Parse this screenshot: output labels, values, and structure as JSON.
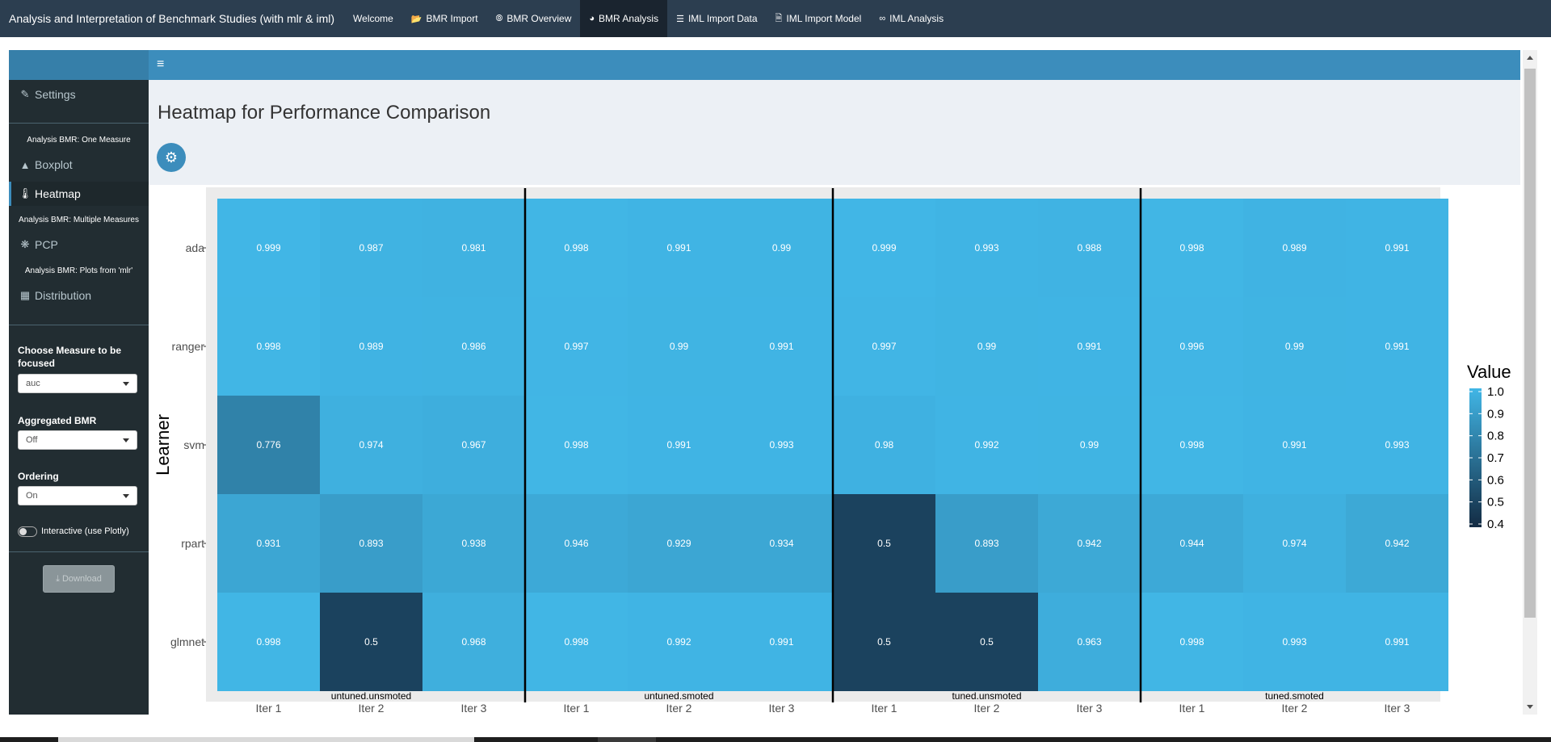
{
  "navbar": {
    "brand": "Analysis and Interpretation of Benchmark Studies (with mlr & iml)",
    "tabs": [
      {
        "label": "Welcome",
        "icon": "none"
      },
      {
        "label": "BMR Import",
        "icon": "folder-icon"
      },
      {
        "label": "BMR Overview",
        "icon": "compass-icon"
      },
      {
        "label": "BMR Analysis",
        "icon": "dashboard-icon"
      },
      {
        "label": "IML Import Data",
        "icon": "list-icon"
      },
      {
        "label": "IML Import Model",
        "icon": "file-icon"
      },
      {
        "label": "IML Analysis",
        "icon": "binoculars-icon"
      }
    ],
    "active_tab": "BMR Analysis"
  },
  "sidebar": {
    "settings": "Settings",
    "section_one_measure": "Analysis BMR: One Measure",
    "boxplot": "Boxplot",
    "heatmap": "Heatmap",
    "section_multiple": "Analysis BMR: Multiple Measures",
    "pcp": "PCP",
    "section_mlr": "Analysis BMR: Plots from 'mlr'",
    "distribution": "Distribution",
    "measure_label": "Choose Measure to be focused",
    "measure_value": "auc",
    "aggregated_label": "Aggregated BMR",
    "aggregated_value": "Off",
    "ordering_label": "Ordering",
    "ordering_value": "On",
    "interactive_label": "Interactive (use Plotly)",
    "interactive_on": false,
    "download": "Download"
  },
  "main": {
    "title": "Heatmap for Performance Comparison"
  },
  "colors": {
    "navbar": "#2c3e50",
    "header": "#3c8dbc",
    "sidebar": "#222d32",
    "content_bg": "#ecf0f5",
    "heat_low": "#1a3550",
    "heat_high": "#41b6e6"
  },
  "chart_data": {
    "type": "heatmap",
    "ylabel": "Learner",
    "xlabel": "",
    "learners": [
      "ada",
      "ranger",
      "svm",
      "rpart",
      "glmnet"
    ],
    "columns": [
      "Iter 1",
      "Iter 2",
      "Iter 3",
      "Iter 1",
      "Iter 2",
      "Iter 3",
      "Iter 1",
      "Iter 2",
      "Iter 3",
      "Iter 1",
      "Iter 2",
      "Iter 3"
    ],
    "groups": [
      "untuned.unsmoted",
      "untuned.smoted",
      "tuned.unsmoted",
      "tuned.smoted"
    ],
    "values": [
      [
        0.999,
        0.987,
        0.981,
        0.998,
        0.991,
        0.99,
        0.999,
        0.993,
        0.988,
        0.998,
        0.989,
        0.991
      ],
      [
        0.998,
        0.989,
        0.986,
        0.997,
        0.99,
        0.991,
        0.997,
        0.99,
        0.991,
        0.996,
        0.99,
        0.991
      ],
      [
        0.776,
        0.974,
        0.967,
        0.998,
        0.991,
        0.993,
        0.98,
        0.992,
        0.99,
        0.998,
        0.991,
        0.993
      ],
      [
        0.931,
        0.893,
        0.938,
        0.946,
        0.929,
        0.934,
        0.5,
        0.893,
        0.942,
        0.944,
        0.974,
        0.942
      ],
      [
        0.998,
        0.5,
        0.968,
        0.998,
        0.992,
        0.991,
        0.5,
        0.5,
        0.963,
        0.998,
        0.993,
        0.991
      ]
    ],
    "legend": {
      "title": "Value",
      "ticks": [
        "1.0",
        "0.9",
        "0.8",
        "0.7",
        "0.6",
        "0.5",
        "0.4"
      ],
      "range": [
        0.4,
        1.0
      ]
    },
    "grid": true
  }
}
